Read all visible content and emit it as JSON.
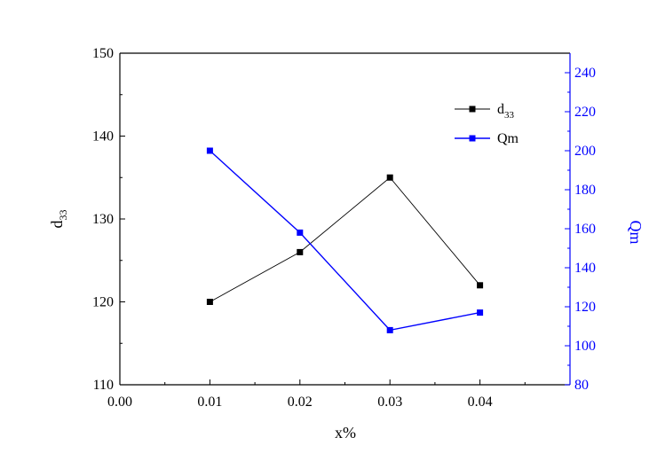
{
  "chart_data": {
    "type": "line",
    "x": [
      0.01,
      0.02,
      0.03,
      0.04
    ],
    "xlabel": "x%",
    "xlim": [
      0.0,
      0.05
    ],
    "xticks": [
      "0.00",
      "0.01",
      "0.02",
      "0.03",
      "0.04"
    ],
    "y_left": {
      "label_main": "d",
      "label_sub": "33",
      "lim": [
        110,
        150
      ],
      "ticks": [
        "110",
        "120",
        "130",
        "140",
        "150"
      ],
      "color": "#000000"
    },
    "y_right": {
      "label": "Qm",
      "lim": [
        80,
        250
      ],
      "ticks": [
        "80",
        "100",
        "120",
        "140",
        "160",
        "180",
        "200",
        "220",
        "240"
      ],
      "color": "#0000ff"
    },
    "series": [
      {
        "name_main": "d",
        "name_sub": "33",
        "axis": "left",
        "color": "#000000",
        "marker": "square",
        "values": [
          120,
          126,
          135,
          122
        ]
      },
      {
        "name": "Qm",
        "axis": "right",
        "color": "#0000ff",
        "marker": "square",
        "values": [
          200,
          158,
          108,
          117
        ]
      }
    ],
    "legend_position": "top-right",
    "grid": false
  }
}
